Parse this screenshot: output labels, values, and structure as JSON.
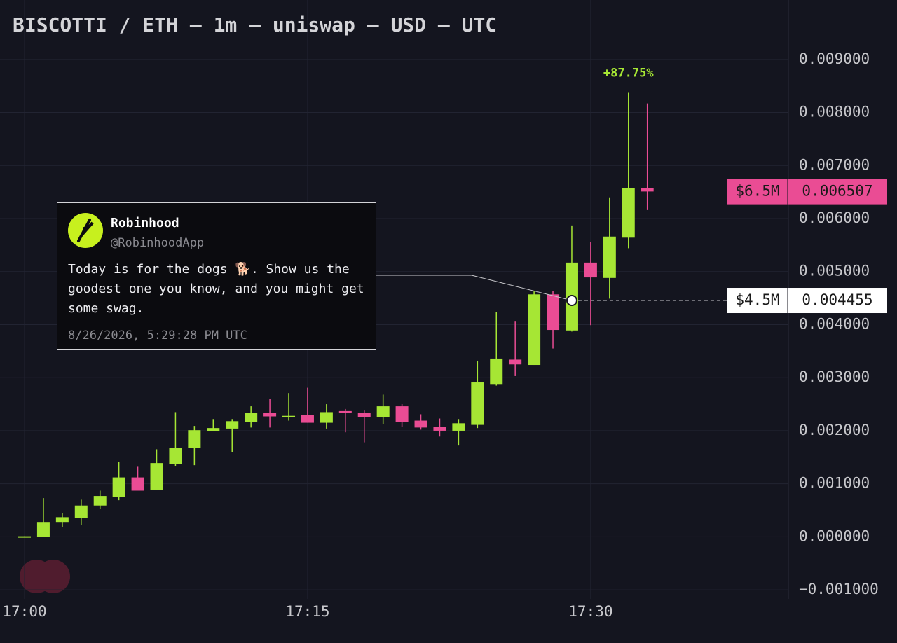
{
  "chart_data": {
    "type": "candlestick",
    "title": "BISCOTTI / ETH — 1m — uniswap — USD — UTC",
    "categories": [
      "17:00",
      null,
      null,
      null,
      null,
      null,
      null,
      null,
      null,
      null,
      null,
      null,
      null,
      null,
      null,
      "17:15",
      null,
      null,
      null,
      null,
      null,
      null,
      null,
      null,
      null,
      null,
      null,
      null,
      null,
      null,
      "17:30",
      null,
      null,
      null
    ],
    "open": [
      0.0,
      0.0,
      0.00028,
      0.00036,
      0.00059,
      0.00075,
      0.00112,
      0.00089,
      0.00137,
      0.00167,
      0.00199,
      0.00204,
      0.00217,
      0.00234,
      0.00227,
      0.00229,
      0.00215,
      0.00237,
      0.00234,
      0.00225,
      0.00246,
      0.00219,
      0.00207,
      0.002,
      0.00211,
      0.00288,
      0.00334,
      0.00324,
      0.00457,
      0.00389,
      0.00517,
      0.00488,
      0.00564,
      0.00658
    ],
    "high": [
      1e-05,
      0.00073,
      0.00045,
      0.0007,
      0.00087,
      0.00141,
      0.00132,
      0.00165,
      0.00235,
      0.00209,
      0.00222,
      0.00222,
      0.00246,
      0.0026,
      0.00271,
      0.00281,
      0.0025,
      0.00241,
      0.00238,
      0.00268,
      0.0025,
      0.00231,
      0.00223,
      0.00222,
      0.00332,
      0.00424,
      0.00407,
      0.00464,
      0.00463,
      0.00587,
      0.00556,
      0.0064,
      0.00837,
      0.00817
    ],
    "low": [
      0.0,
      0.0,
      0.00019,
      0.00022,
      0.00052,
      0.00069,
      0.00087,
      0.00089,
      0.00133,
      0.00135,
      0.00199,
      0.0016,
      0.00206,
      0.00206,
      0.00219,
      0.00215,
      0.00204,
      0.00197,
      0.00178,
      0.00213,
      0.00207,
      0.00202,
      0.00189,
      0.00172,
      0.00205,
      0.00285,
      0.00303,
      0.00324,
      0.00355,
      0.00387,
      0.00399,
      0.00449,
      0.00544,
      0.00616
    ],
    "close": [
      1e-05,
      0.00028,
      0.00037,
      0.00059,
      0.00077,
      0.00112,
      0.00087,
      0.00139,
      0.00167,
      0.00201,
      0.00205,
      0.00218,
      0.00234,
      0.00227,
      0.00228,
      0.00215,
      0.00235,
      0.00234,
      0.00225,
      0.00246,
      0.00217,
      0.00206,
      0.002,
      0.00214,
      0.00291,
      0.00336,
      0.00325,
      0.00457,
      0.0039,
      0.00517,
      0.00489,
      0.00566,
      0.00658,
      0.00651
    ],
    "up_color": "#a6e634",
    "down_color": "#ea4c94",
    "ylim": [
      -0.00117,
      0.01012
    ],
    "yticks": [
      {
        "value": -0.001,
        "label": "−0.001000"
      },
      {
        "value": 0.0,
        "label": "0.000000"
      },
      {
        "value": 0.001,
        "label": "0.001000"
      },
      {
        "value": 0.002,
        "label": "0.002000"
      },
      {
        "value": 0.003,
        "label": "0.003000"
      },
      {
        "value": 0.004,
        "label": "0.004000"
      },
      {
        "value": 0.005,
        "label": "0.005000"
      },
      {
        "value": 0.006,
        "label": "0.006000"
      },
      {
        "value": 0.007,
        "label": "0.007000"
      },
      {
        "value": 0.008,
        "label": "0.008000"
      },
      {
        "value": 0.009,
        "label": "0.009000"
      }
    ],
    "grid": true,
    "change_label": "+87.75%",
    "price_lines": [
      {
        "value": 0.006507,
        "label": "0.006507",
        "cap_label": "$6.5M",
        "color": "#ea4c94",
        "text_color": "#1a1a1a"
      },
      {
        "value": 0.004455,
        "label": "0.004455",
        "cap_label": "$4.5M",
        "color": "#ffffff",
        "text_color": "#1a1a1a"
      }
    ]
  },
  "tweet": {
    "name": "Robinhood",
    "handle": "@RobinhoodApp",
    "lines": [
      "Today is for the dogs 🐕. Show us the",
      "goodest one you know, and you might get",
      "some swag."
    ],
    "time": "8/26/2026, 5:29:28 PM UTC",
    "category_index": 29
  }
}
